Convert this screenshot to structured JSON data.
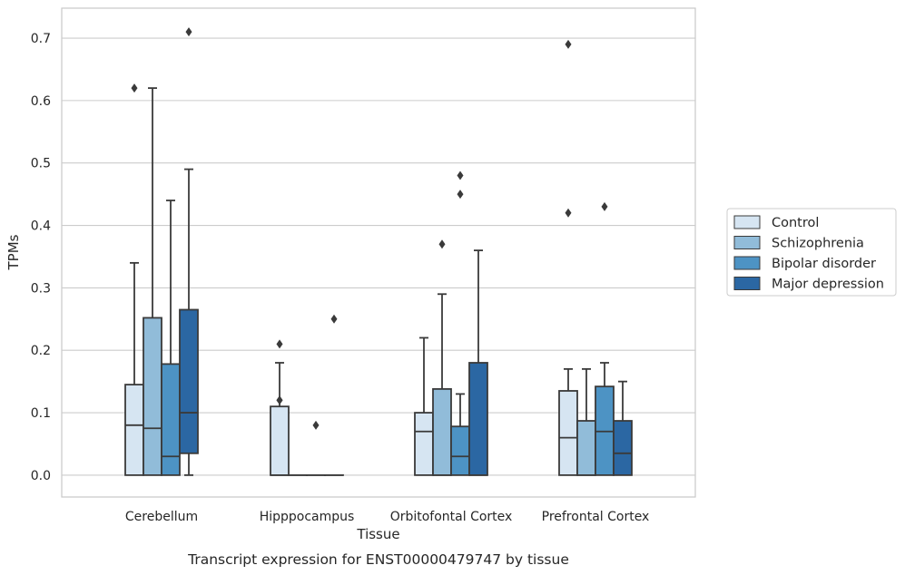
{
  "chart_data": {
    "type": "boxplot",
    "title": "",
    "caption": "Transcript expression for ENST00000479747 by tissue",
    "xlabel": "Tissue",
    "ylabel": "TPMs",
    "ylim": [
      -0.035,
      0.748
    ],
    "yticks": [
      "0.0",
      "0.1",
      "0.2",
      "0.3",
      "0.4",
      "0.5",
      "0.6",
      "0.7"
    ],
    "ytick_values": [
      0,
      0.1,
      0.2,
      0.3,
      0.4,
      0.5,
      0.6,
      0.7
    ],
    "grid": true,
    "legend_position": "right",
    "categories": [
      "Cerebellum",
      "Hipppocampus",
      "Orbitofontal Cortex",
      "Prefrontal Cortex"
    ],
    "series": [
      {
        "name": "Control",
        "color": "#d6e5f2",
        "boxes": [
          {
            "min": 0.0,
            "q1": 0.0,
            "median": 0.08,
            "q3": 0.145,
            "max": 0.34,
            "outliers": [
              0.62
            ]
          },
          {
            "min": 0.0,
            "q1": 0.0,
            "median": 0.0,
            "q3": 0.11,
            "max": 0.18,
            "outliers": [
              0.21,
              0.12,
              0.12
            ]
          },
          {
            "min": 0.0,
            "q1": 0.0,
            "median": 0.07,
            "q3": 0.1,
            "max": 0.22,
            "outliers": []
          },
          {
            "min": 0.0,
            "q1": 0.0,
            "median": 0.06,
            "q3": 0.135,
            "max": 0.17,
            "outliers": [
              0.69,
              0.42
            ]
          }
        ]
      },
      {
        "name": "Schizophrenia",
        "color": "#91bcd9",
        "boxes": [
          {
            "min": 0.0,
            "q1": 0.0,
            "median": 0.075,
            "q3": 0.252,
            "max": 0.62,
            "outliers": []
          },
          {
            "min": 0.0,
            "q1": 0.0,
            "median": 0.0,
            "q3": 0.0,
            "max": 0.0,
            "outliers": []
          },
          {
            "min": 0.0,
            "q1": 0.0,
            "median": 0.0,
            "q3": 0.138,
            "max": 0.29,
            "outliers": [
              0.37
            ]
          },
          {
            "min": 0.0,
            "q1": 0.0,
            "median": 0.0,
            "q3": 0.087,
            "max": 0.17,
            "outliers": []
          }
        ]
      },
      {
        "name": "Bipolar disorder",
        "color": "#4d93c4",
        "boxes": [
          {
            "min": 0.0,
            "q1": 0.0,
            "median": 0.03,
            "q3": 0.178,
            "max": 0.44,
            "outliers": []
          },
          {
            "min": 0.0,
            "q1": 0.0,
            "median": 0.0,
            "q3": 0.0,
            "max": 0.0,
            "outliers": [
              0.08
            ]
          },
          {
            "min": 0.0,
            "q1": 0.0,
            "median": 0.03,
            "q3": 0.078,
            "max": 0.13,
            "outliers": [
              0.48,
              0.45
            ]
          },
          {
            "min": 0.0,
            "q1": 0.0,
            "median": 0.07,
            "q3": 0.142,
            "max": 0.18,
            "outliers": [
              0.43
            ]
          }
        ]
      },
      {
        "name": "Major depression",
        "color": "#2b67a3",
        "boxes": [
          {
            "min": 0.0,
            "q1": 0.035,
            "median": 0.1,
            "q3": 0.265,
            "max": 0.49,
            "outliers": [
              0.71
            ]
          },
          {
            "min": 0.0,
            "q1": 0.0,
            "median": 0.0,
            "q3": 0.0,
            "max": 0.0,
            "outliers": [
              0.25
            ]
          },
          {
            "min": 0.0,
            "q1": 0.0,
            "median": 0.0,
            "q3": 0.18,
            "max": 0.36,
            "outliers": []
          },
          {
            "min": 0.0,
            "q1": 0.0,
            "median": 0.035,
            "q3": 0.087,
            "max": 0.15,
            "outliers": []
          }
        ]
      }
    ]
  }
}
